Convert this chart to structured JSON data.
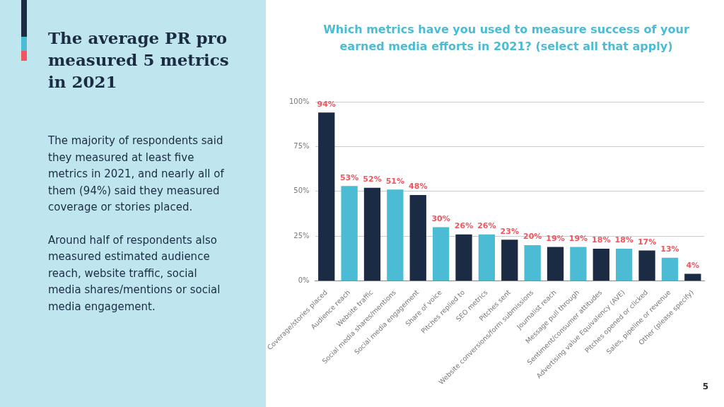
{
  "chart_data": [
    {
      "type": "other",
      "title": "The average PR pro measured 5 metrics in 2021",
      "annotations": [
        "The majority of respondents said they measured at least five metrics in 2021, and nearly all of them (94%) said they measured coverage or stories placed.",
        "Around half of respondents also measured estimated audience reach, website traffic, social media shares/mentions or social media engagement."
      ]
    },
    {
      "type": "bar",
      "title": "Which metrics have you used to measure success of your earned media efforts in 2021? (select all that apply)",
      "categories": [
        "Coverage/stories placed",
        "Audience reach",
        "Website traffic",
        "Social media shares/mentions",
        "Social media engagement",
        "Share of voice",
        "Pitches replied to",
        "SEO metrics",
        "Pitches sent",
        "Website conversions/form submissions",
        "Journalist reach",
        "Message pull through",
        "Sentiment/consumer attitudes",
        "Advertising value Equivalency (AVE)",
        "Pitches opened or clicked",
        "Sales, pipeline or revenue",
        "Other (please specify)"
      ],
      "values": [
        94,
        53,
        52,
        51,
        48,
        30,
        26,
        26,
        23,
        20,
        19,
        19,
        18,
        18,
        17,
        13,
        4
      ],
      "value_labels": [
        "94%",
        "53%",
        "52%",
        "51%",
        "48%",
        "30%",
        "26%",
        "26%",
        "23%",
        "20%",
        "19%",
        "19%",
        "18%",
        "18%",
        "17%",
        "13%",
        "4%"
      ],
      "colors": [
        "#1b2b43",
        "#4bbcd4",
        "#1b2b43",
        "#4bbcd4",
        "#1b2b43",
        "#4bbcd4",
        "#1b2b43",
        "#4bbcd4",
        "#1b2b43",
        "#4bbcd4",
        "#1b2b43",
        "#4bbcd4",
        "#1b2b43",
        "#4bbcd4",
        "#1b2b43",
        "#4bbcd4",
        "#1b2b43"
      ],
      "ylim": [
        0,
        100
      ],
      "yticks": [
        {
          "value": 0,
          "label": "0%"
        },
        {
          "value": 25,
          "label": "25%"
        },
        {
          "value": 50,
          "label": "50%"
        },
        {
          "value": 75,
          "label": "75%"
        },
        {
          "value": 100,
          "label": "100%"
        }
      ],
      "grid": "y",
      "legend": false,
      "annotations": [
        "5"
      ]
    }
  ]
}
